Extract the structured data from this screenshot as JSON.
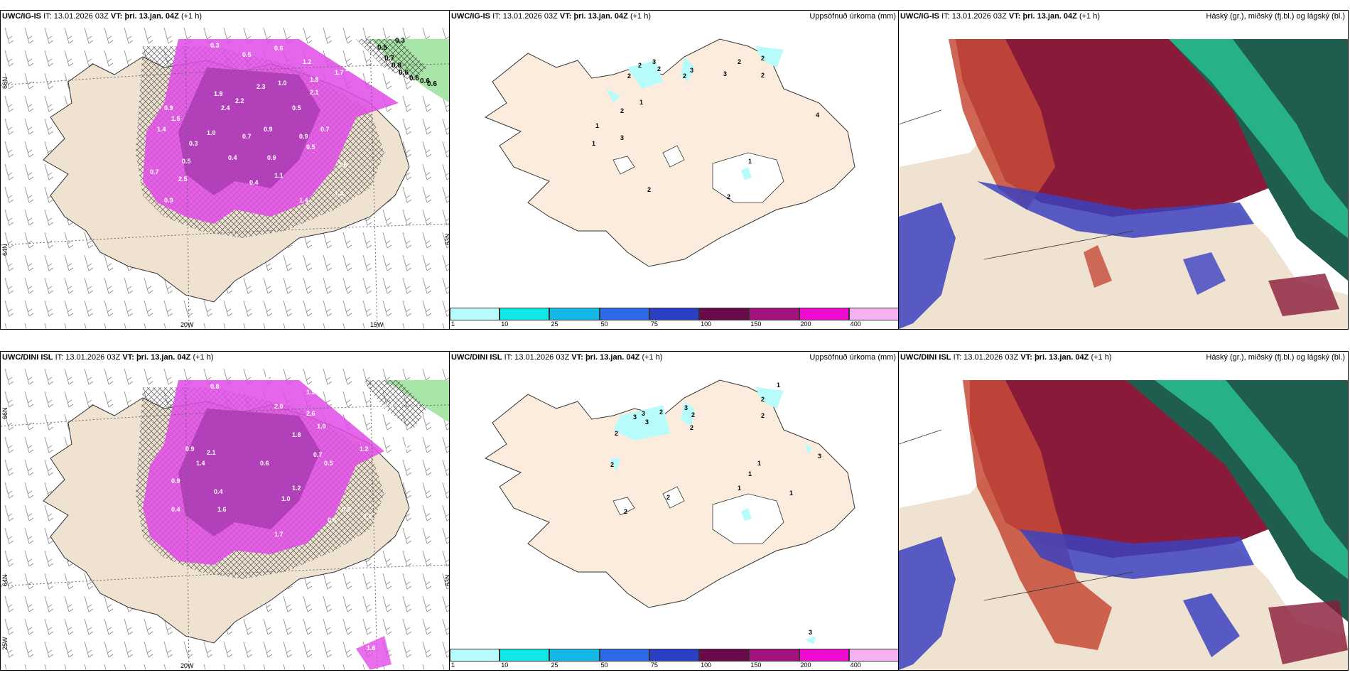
{
  "title_model_top": "UWC/IG-IS",
  "title_model_bottom": "UWC/DINI ISL",
  "it_label": "IT:",
  "it_value": "13.01.2026 03Z",
  "vt_label": "VT:",
  "vt_value": "þri. 13.jan. 04Z",
  "lead": "(+1 h)",
  "precip_title": "Uppsöfnuð úrkoma (mm)",
  "cloud_title": "Háský (gr.), miðský (fj.bl.) og lágský (bl.)",
  "colorbar": {
    "levels": [
      "1",
      "10",
      "25",
      "50",
      "75",
      "100",
      "150",
      "200",
      "400"
    ],
    "colors": [
      "#b7fbfb",
      "#12e6e6",
      "#14b8e6",
      "#2d6ae6",
      "#2b3fc4",
      "#6b0a4a",
      "#a3127f",
      "#f00bd0",
      "#f5b2f0"
    ]
  },
  "axes": {
    "lon_20": "20W",
    "lon_15": "15W",
    "lat_66": "66N",
    "lat_64": "64N",
    "lat_63": "63N",
    "lon_25": "25W"
  },
  "top_left_labels": [
    "0.3",
    "0.5",
    "0.6",
    "0.3",
    "1.2",
    "1.8",
    "2.1",
    "1.7",
    "2.4",
    "0.5",
    "0.7",
    "0.8",
    "0.6",
    "0.6",
    "0.6",
    "0.6",
    "1.0",
    "2.3",
    "1.9",
    "0.9",
    "1.5",
    "1.4",
    "1.0",
    "0.7",
    "2.4",
    "2.2",
    "0.9",
    "0.5",
    "0.7",
    "0.9",
    "0.3",
    "0.9",
    "0.5",
    "0.4",
    "0.4",
    "1.1",
    "0.5",
    "0.7",
    "2.5",
    "1.4",
    "1.3",
    "0.9",
    "1.6"
  ],
  "bottom_left_labels": [
    "0.8",
    "0.6",
    "1.2",
    "1.9",
    "0.7",
    "0.5",
    "0.7",
    "0.8",
    "2.6",
    "2.0",
    "1.0",
    "1.8",
    "0.9",
    "2.1",
    "1.4",
    "0.9",
    "0.6",
    "0.4",
    "1.0",
    "1.2",
    "0.5",
    "0.7",
    "1.6",
    "1.2",
    "0.9",
    "0.3",
    "0.6",
    "0.4",
    "1.6",
    "1.7"
  ],
  "top_mid_labels": [
    "2",
    "3",
    "2",
    "2",
    "3",
    "2",
    "3",
    "2",
    "2",
    "2",
    "1",
    "3",
    "1",
    "2",
    "4",
    "1",
    "1",
    "2",
    "2"
  ],
  "bottom_mid_labels": [
    "1",
    "2",
    "3",
    "3",
    "3",
    "2",
    "3",
    "2",
    "2",
    "2",
    "2",
    "1",
    "1",
    "1",
    "1",
    "2",
    "2",
    "3",
    "3",
    "2"
  ]
}
